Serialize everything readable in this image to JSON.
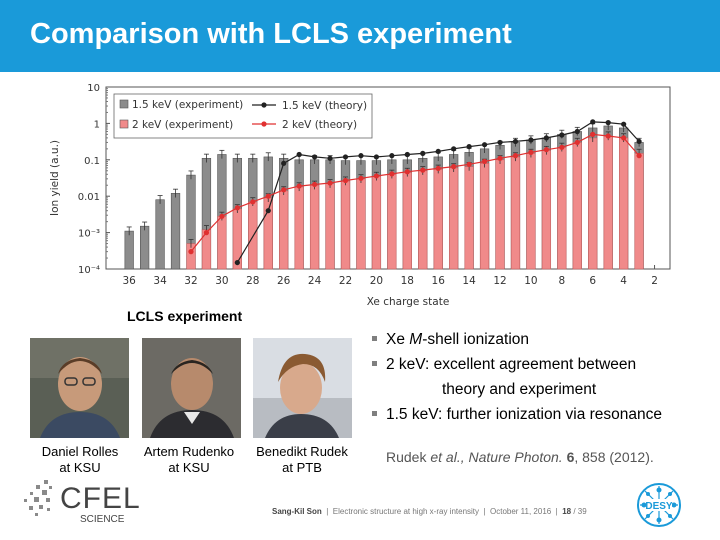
{
  "slide": {
    "title": "Comparison with LCLS experiment",
    "caption": "LCLS experiment",
    "bullets": [
      {
        "prefix": "Xe ",
        "italic": "M",
        "suffix": "-shell ionization"
      },
      {
        "prefix": "2 keV: excellent agreement between",
        "italic": "",
        "suffix": ""
      },
      {
        "prefix": "1.5 keV: further ionization via resonance",
        "italic": "",
        "suffix": ""
      }
    ],
    "bullet_continuation": "theory and experiment",
    "reference": {
      "authors": "Rudek",
      "etal": "et al.,",
      "journal": "Nature Photon.",
      "volume": "6",
      "pages": ", 858 (2012)."
    },
    "people": [
      {
        "name": "Daniel Rolles",
        "affiliation": "at KSU"
      },
      {
        "name": "Artem Rudenko",
        "affiliation": "at KSU"
      },
      {
        "name": "Benedikt Rudek",
        "affiliation": "at PTB"
      }
    ],
    "footer": {
      "author": "Sang-Kil Son",
      "talk": "Electronic structure at high x-ray intensity",
      "date": "October 11, 2016",
      "page": "18",
      "total": "/ 39"
    },
    "logos": {
      "cfel_word": "CFEL",
      "cfel_sub": "SCIENCE",
      "desy": "DESY"
    }
  },
  "colors": {
    "title_bar": "#1a9ad9",
    "exp_1_5keV": "#8c8c8c",
    "exp_2keV": "#f08a8a",
    "theory_1_5keV": "#222222",
    "theory_2keV": "#e03030"
  },
  "chart_data": {
    "type": "bar",
    "xlabel": "Xe charge state",
    "ylabel": "Ion yield (a.u.)",
    "x_reversed": true,
    "y_scale": "log",
    "ylim": [
      0.0001,
      10
    ],
    "xlim": [
      37.5,
      1
    ],
    "x_ticks": [
      36,
      34,
      32,
      30,
      28,
      26,
      24,
      22,
      20,
      18,
      16,
      14,
      12,
      10,
      8,
      6,
      4,
      2
    ],
    "y_ticks": [
      {
        "value": 10,
        "label": "10"
      },
      {
        "value": 1,
        "label": "1"
      },
      {
        "value": 0.1,
        "label": "0.1"
      },
      {
        "value": 0.01,
        "label": "0.01"
      },
      {
        "value": 0.001,
        "label": "10⁻³"
      },
      {
        "value": 0.0001,
        "label": "10⁻⁴"
      }
    ],
    "legend_position": "top-left",
    "legend": [
      "1.5 keV (experiment)",
      "2 keV (experiment)",
      "1.5 keV (theory)",
      "2 keV (theory)"
    ],
    "series": [
      {
        "name": "1.5 keV (experiment)",
        "kind": "bar",
        "x": [
          36,
          35,
          34,
          33,
          32,
          31,
          30,
          29,
          28,
          27,
          26,
          25,
          24,
          23,
          22,
          21,
          20,
          19,
          18,
          17,
          16,
          15,
          14,
          13,
          12,
          11,
          10,
          9,
          8,
          7,
          6,
          5,
          4,
          3
        ],
        "values": [
          0.0011,
          0.0015,
          0.008,
          0.012,
          0.038,
          0.11,
          0.14,
          0.11,
          0.11,
          0.12,
          0.11,
          0.1,
          0.1,
          0.1,
          0.095,
          0.095,
          0.095,
          0.1,
          0.1,
          0.11,
          0.12,
          0.14,
          0.16,
          0.2,
          0.25,
          0.3,
          0.35,
          0.4,
          0.5,
          0.6,
          0.75,
          0.85,
          0.75,
          0.3
        ]
      },
      {
        "name": "2 keV (experiment)",
        "kind": "bar",
        "x": [
          32,
          31,
          30,
          29,
          28,
          27,
          26,
          25,
          24,
          23,
          22,
          21,
          20,
          19,
          18,
          17,
          16,
          15,
          14,
          13,
          12,
          11,
          10,
          9,
          8,
          7,
          6,
          5,
          4,
          3
        ],
        "values": [
          0.0005,
          0.0012,
          0.0028,
          0.0045,
          0.007,
          0.009,
          0.014,
          0.018,
          0.02,
          0.022,
          0.026,
          0.03,
          0.035,
          0.04,
          0.045,
          0.05,
          0.055,
          0.06,
          0.065,
          0.08,
          0.1,
          0.12,
          0.15,
          0.18,
          0.22,
          0.3,
          0.4,
          0.45,
          0.4,
          0.15
        ]
      },
      {
        "name": "1.5 keV (theory)",
        "kind": "line",
        "x": [
          29,
          27,
          26,
          25,
          24,
          23,
          22,
          21,
          20,
          19,
          18,
          17,
          16,
          15,
          14,
          13,
          12,
          11,
          10,
          9,
          8,
          7,
          6,
          5,
          4,
          3
        ],
        "values": [
          0.00015,
          0.004,
          0.08,
          0.14,
          0.12,
          0.11,
          0.12,
          0.13,
          0.12,
          0.13,
          0.14,
          0.15,
          0.17,
          0.2,
          0.23,
          0.26,
          0.3,
          0.32,
          0.35,
          0.4,
          0.48,
          0.6,
          1.1,
          1.05,
          0.95,
          0.32
        ]
      },
      {
        "name": "2 keV (theory)",
        "kind": "line",
        "x": [
          32,
          31,
          30,
          29,
          28,
          27,
          26,
          25,
          24,
          23,
          22,
          21,
          20,
          19,
          18,
          17,
          16,
          15,
          14,
          13,
          12,
          11,
          10,
          9,
          8,
          7,
          6,
          5,
          4,
          3
        ],
        "values": [
          0.0003,
          0.001,
          0.0028,
          0.0048,
          0.007,
          0.01,
          0.015,
          0.019,
          0.021,
          0.023,
          0.027,
          0.031,
          0.036,
          0.041,
          0.047,
          0.052,
          0.058,
          0.065,
          0.075,
          0.09,
          0.11,
          0.13,
          0.16,
          0.19,
          0.22,
          0.3,
          0.5,
          0.45,
          0.4,
          0.13
        ]
      }
    ]
  }
}
